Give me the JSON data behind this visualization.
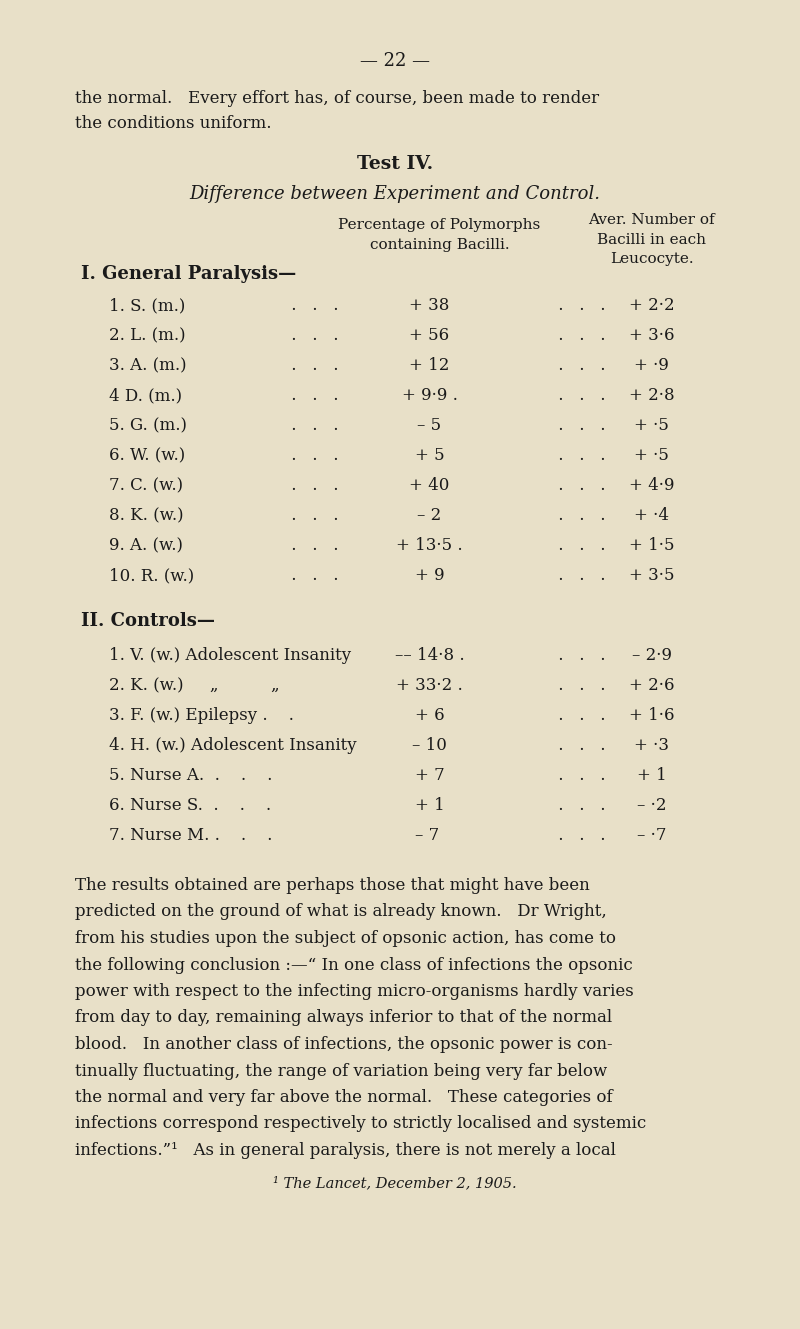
{
  "bg_color": "#e8e0c8",
  "text_color": "#1a1a1a",
  "page_number": "— 22 —",
  "intro_text": "the normal.   Every effort has, of course, been made to render\nthe conditions uniform.",
  "title": "Test IV.",
  "subtitle": "Difference between Experiment and Control.",
  "col1_header": "Percentage of Polymorphs\ncontaining Bacilli.",
  "col2_header": "Aver. Number of\nBacilli in each\nLeucocyte.",
  "section1_header": "I. General Paralysis—",
  "section1_rows": [
    [
      "1. S. (m.)",
      "+ 38",
      "+ 2·2"
    ],
    [
      "2. L. (m.)",
      "+ 56",
      "+ 3·6"
    ],
    [
      "3. A. (m.)",
      "+ 12",
      "+ ·9"
    ],
    [
      "4 D. (m.)",
      "+ 9·9 .",
      "+ 2·8"
    ],
    [
      "5. G. (m.)",
      "– 5",
      "+ ·5"
    ],
    [
      "6. W. (w.)",
      "+ 5",
      "+ ·5"
    ],
    [
      "7. C. (w.)",
      "+ 40",
      "+ 4·9"
    ],
    [
      "8. K. (w.)",
      "– 2",
      "+ ·4"
    ],
    [
      "9. A. (w.)",
      "+ 13·5 .",
      "+ 1·5"
    ],
    [
      "10. R. (w.)",
      "+ 9",
      "+ 3·5"
    ]
  ],
  "section2_header": "II. Controls—",
  "section2_rows": [
    [
      "1. V. (w.) Adolescent Insanity",
      "–– 14·8 .",
      "– 2·9"
    ],
    [
      "2. K. (w.)     „          „",
      "+ 33·2 .",
      "+ 2·6"
    ],
    [
      "3. F. (w.) Epilepsy .    .",
      "+ 6",
      "+ 1·6"
    ],
    [
      "4. H. (w.) Adolescent Insanity",
      "– 10",
      "+ ·3"
    ],
    [
      "5. Nurse A.  .    .    .",
      "+ 7",
      "+ 1"
    ],
    [
      "6. Nurse S.  .    .    .",
      "+ 1",
      "– ·2"
    ],
    [
      "7. Nurse M. .    .    .",
      "– 7 ",
      "– ·7"
    ]
  ],
  "paragraph": "The results obtained are perhaps those that might have been predicted on the ground of what is already known.   Dr Wright, from his studies upon the subject of opsonic action, has come to the following conclusion :—“ In one class of infections the opsonic power with respect to the infecting micro-organisms hardly varies from day to day, remaining always inferior to that of the normal blood.   In another class of infections, the opsonic power is con- tinually fluctuating, the range of variation being very far below the normal and very far above the normal.   These categories of infections correspond respectively to strictly localised and systemic infections.”¹   As in general paralysis, there is not merely a local",
  "footnote": "¹ The Lancet, December 2, 1905."
}
